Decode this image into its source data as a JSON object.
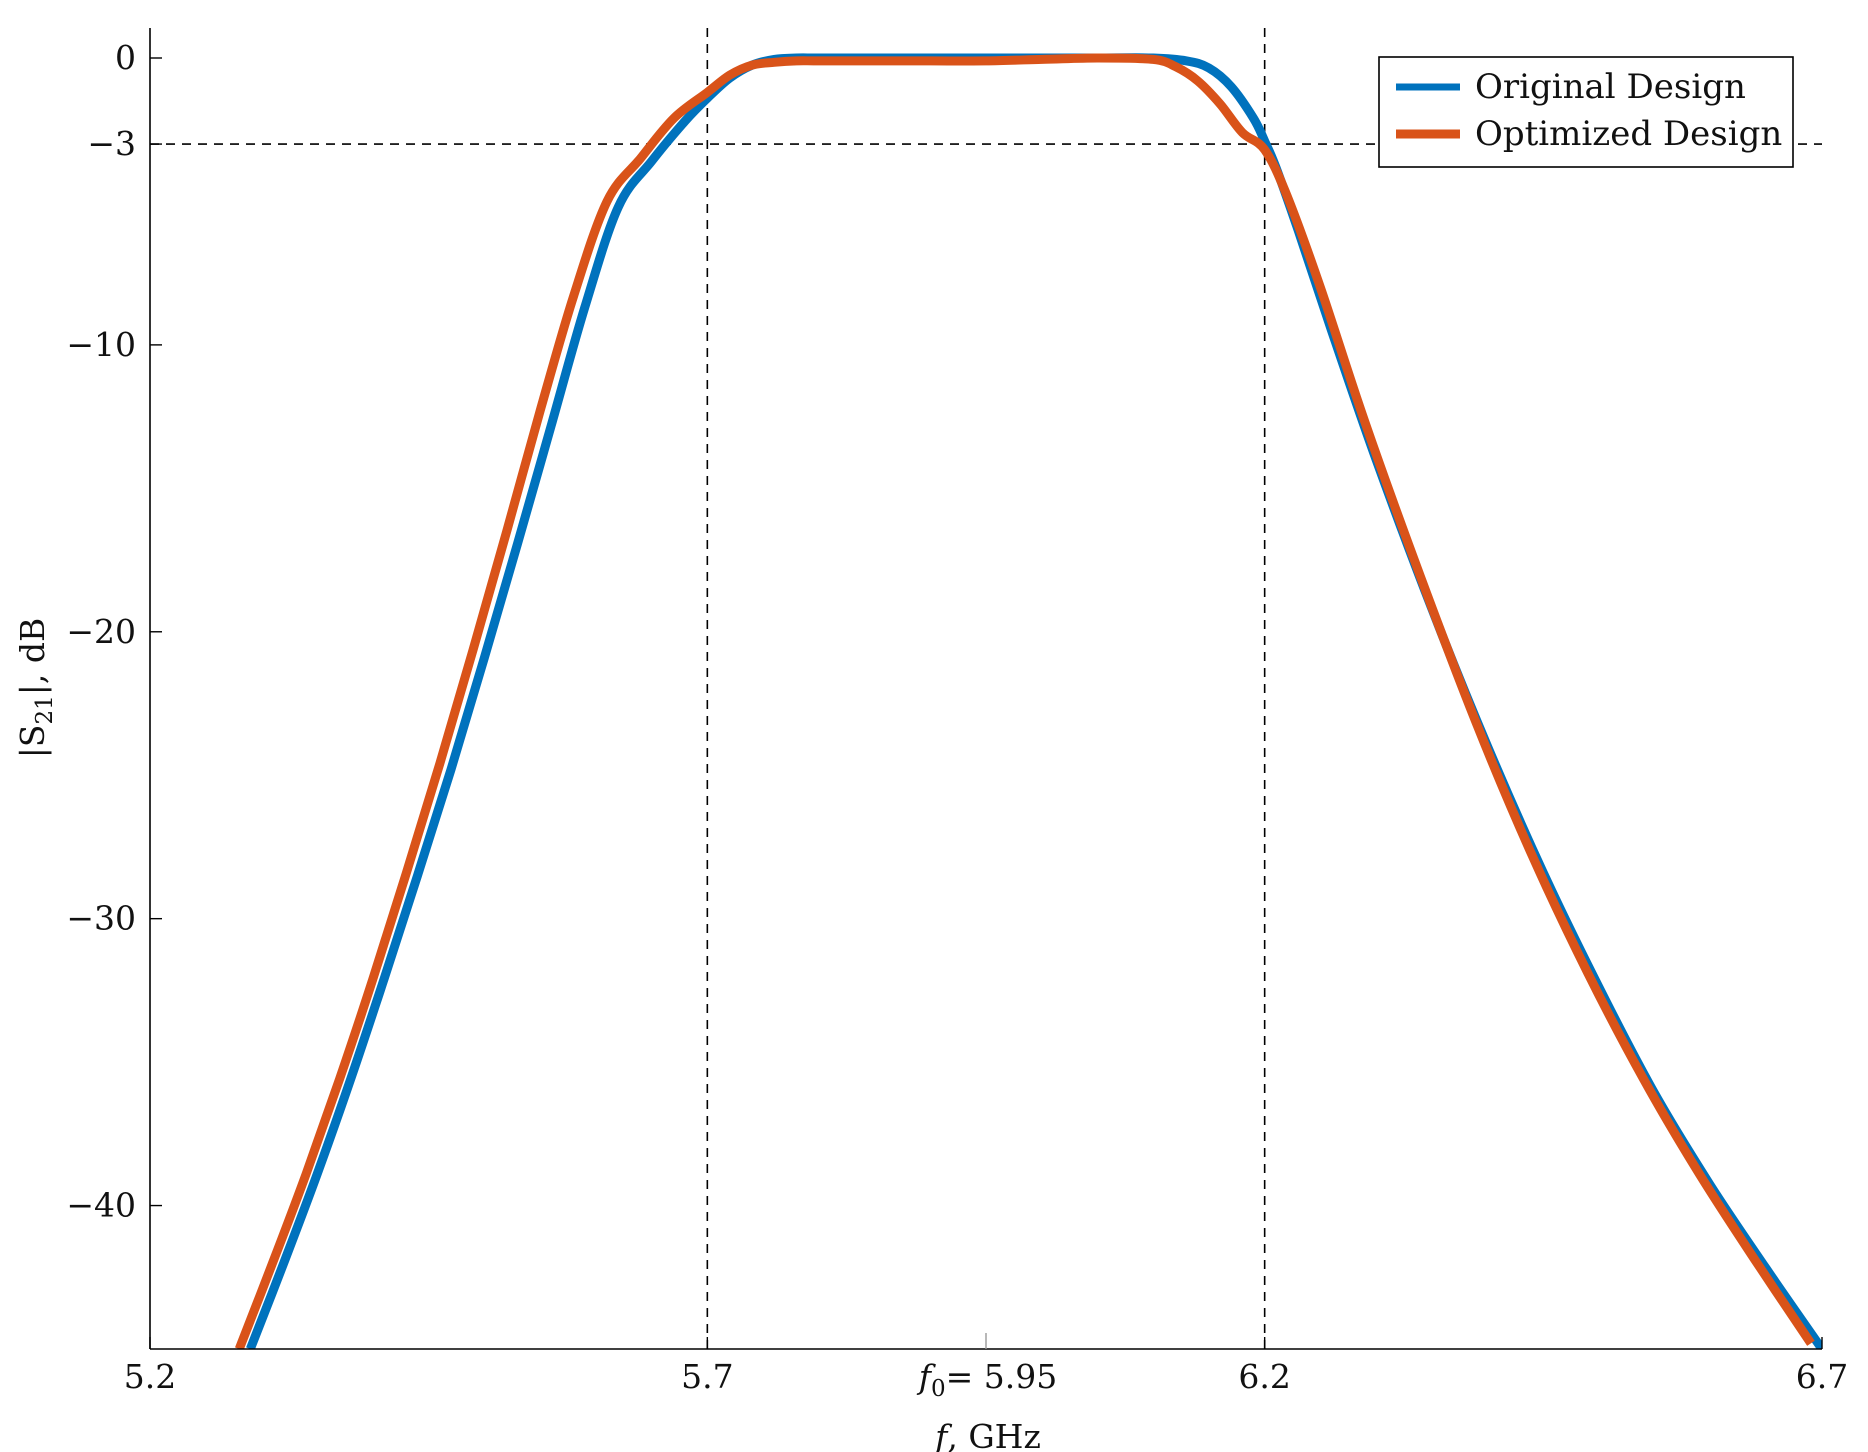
{
  "chart_data": {
    "type": "line",
    "title": "",
    "xlabel_var": "f",
    "xlabel_unit": ", GHz",
    "ylabel_base": "|S",
    "ylabel_sub": "21",
    "ylabel_tail": "|, dB",
    "xlim": [
      5.2,
      6.7
    ],
    "ylim": [
      -45,
      1
    ],
    "x_ticks": [
      {
        "value": 5.2,
        "label": "5.2"
      },
      {
        "value": 5.7,
        "label": "5.7"
      },
      {
        "value": 6.2,
        "label": "6.2"
      },
      {
        "value": 6.7,
        "label": "6.7"
      }
    ],
    "center_tick": {
      "value": 5.95,
      "var": "f",
      "sub": "0",
      "label": "= 5.95"
    },
    "y_ticks": [
      {
        "value": 0,
        "label": "0"
      },
      {
        "value": -3,
        "label": "−3"
      },
      {
        "value": -10,
        "label": "−10"
      },
      {
        "value": -20,
        "label": "−20"
      },
      {
        "value": -30,
        "label": "−30"
      },
      {
        "value": -40,
        "label": "−40"
      }
    ],
    "reference_lines": {
      "vertical": [
        5.7,
        6.2
      ],
      "horizontal": [
        -3
      ]
    },
    "legend_position": "top-right",
    "grid": false,
    "series": [
      {
        "name": "Original Design",
        "color": "#0072BD",
        "x": [
          5.29,
          5.32,
          5.35,
          5.38,
          5.41,
          5.44,
          5.47,
          5.5,
          5.53,
          5.56,
          5.59,
          5.62,
          5.65,
          5.68,
          5.7,
          5.72,
          5.74,
          5.76,
          5.78,
          5.8,
          5.85,
          5.9,
          5.95,
          6.0,
          6.05,
          6.1,
          6.13,
          6.15,
          6.17,
          6.19,
          6.2,
          6.21,
          6.23,
          6.26,
          6.3,
          6.35,
          6.4,
          6.45,
          6.5,
          6.55,
          6.6,
          6.65,
          6.7
        ],
        "y": [
          -45.0,
          -42.0,
          -38.9,
          -35.6,
          -32.1,
          -28.5,
          -24.8,
          -20.9,
          -16.9,
          -12.8,
          -8.7,
          -5.2,
          -3.6,
          -2.2,
          -1.4,
          -0.7,
          -0.25,
          -0.05,
          0.0,
          0.0,
          0.0,
          0.0,
          0.0,
          0.0,
          0.0,
          0.0,
          -0.1,
          -0.35,
          -1.0,
          -2.1,
          -2.9,
          -3.8,
          -6.0,
          -9.5,
          -14.0,
          -19.2,
          -24.0,
          -28.4,
          -32.4,
          -36.1,
          -39.3,
          -42.2,
          -45.0
        ]
      },
      {
        "name": "Optimized Design",
        "color": "#D95319",
        "x": [
          5.28,
          5.31,
          5.34,
          5.37,
          5.4,
          5.43,
          5.46,
          5.49,
          5.52,
          5.55,
          5.58,
          5.61,
          5.64,
          5.67,
          5.7,
          5.72,
          5.74,
          5.76,
          5.78,
          5.8,
          5.85,
          5.9,
          5.95,
          6.0,
          6.05,
          6.1,
          6.12,
          6.14,
          6.16,
          6.18,
          6.2,
          6.22,
          6.25,
          6.29,
          6.34,
          6.39,
          6.44,
          6.49,
          6.54,
          6.59,
          6.64,
          6.69
        ],
        "y": [
          -45.0,
          -42.0,
          -38.9,
          -35.6,
          -32.1,
          -28.4,
          -24.6,
          -20.6,
          -16.5,
          -12.3,
          -8.3,
          -5.0,
          -3.5,
          -2.1,
          -1.2,
          -0.6,
          -0.25,
          -0.15,
          -0.1,
          -0.1,
          -0.1,
          -0.1,
          -0.1,
          -0.05,
          0.0,
          -0.05,
          -0.3,
          -0.8,
          -1.6,
          -2.6,
          -3.2,
          -4.8,
          -8.0,
          -12.7,
          -18.1,
          -23.2,
          -27.8,
          -31.9,
          -35.6,
          -38.9,
          -41.9,
          -44.8
        ]
      }
    ]
  }
}
